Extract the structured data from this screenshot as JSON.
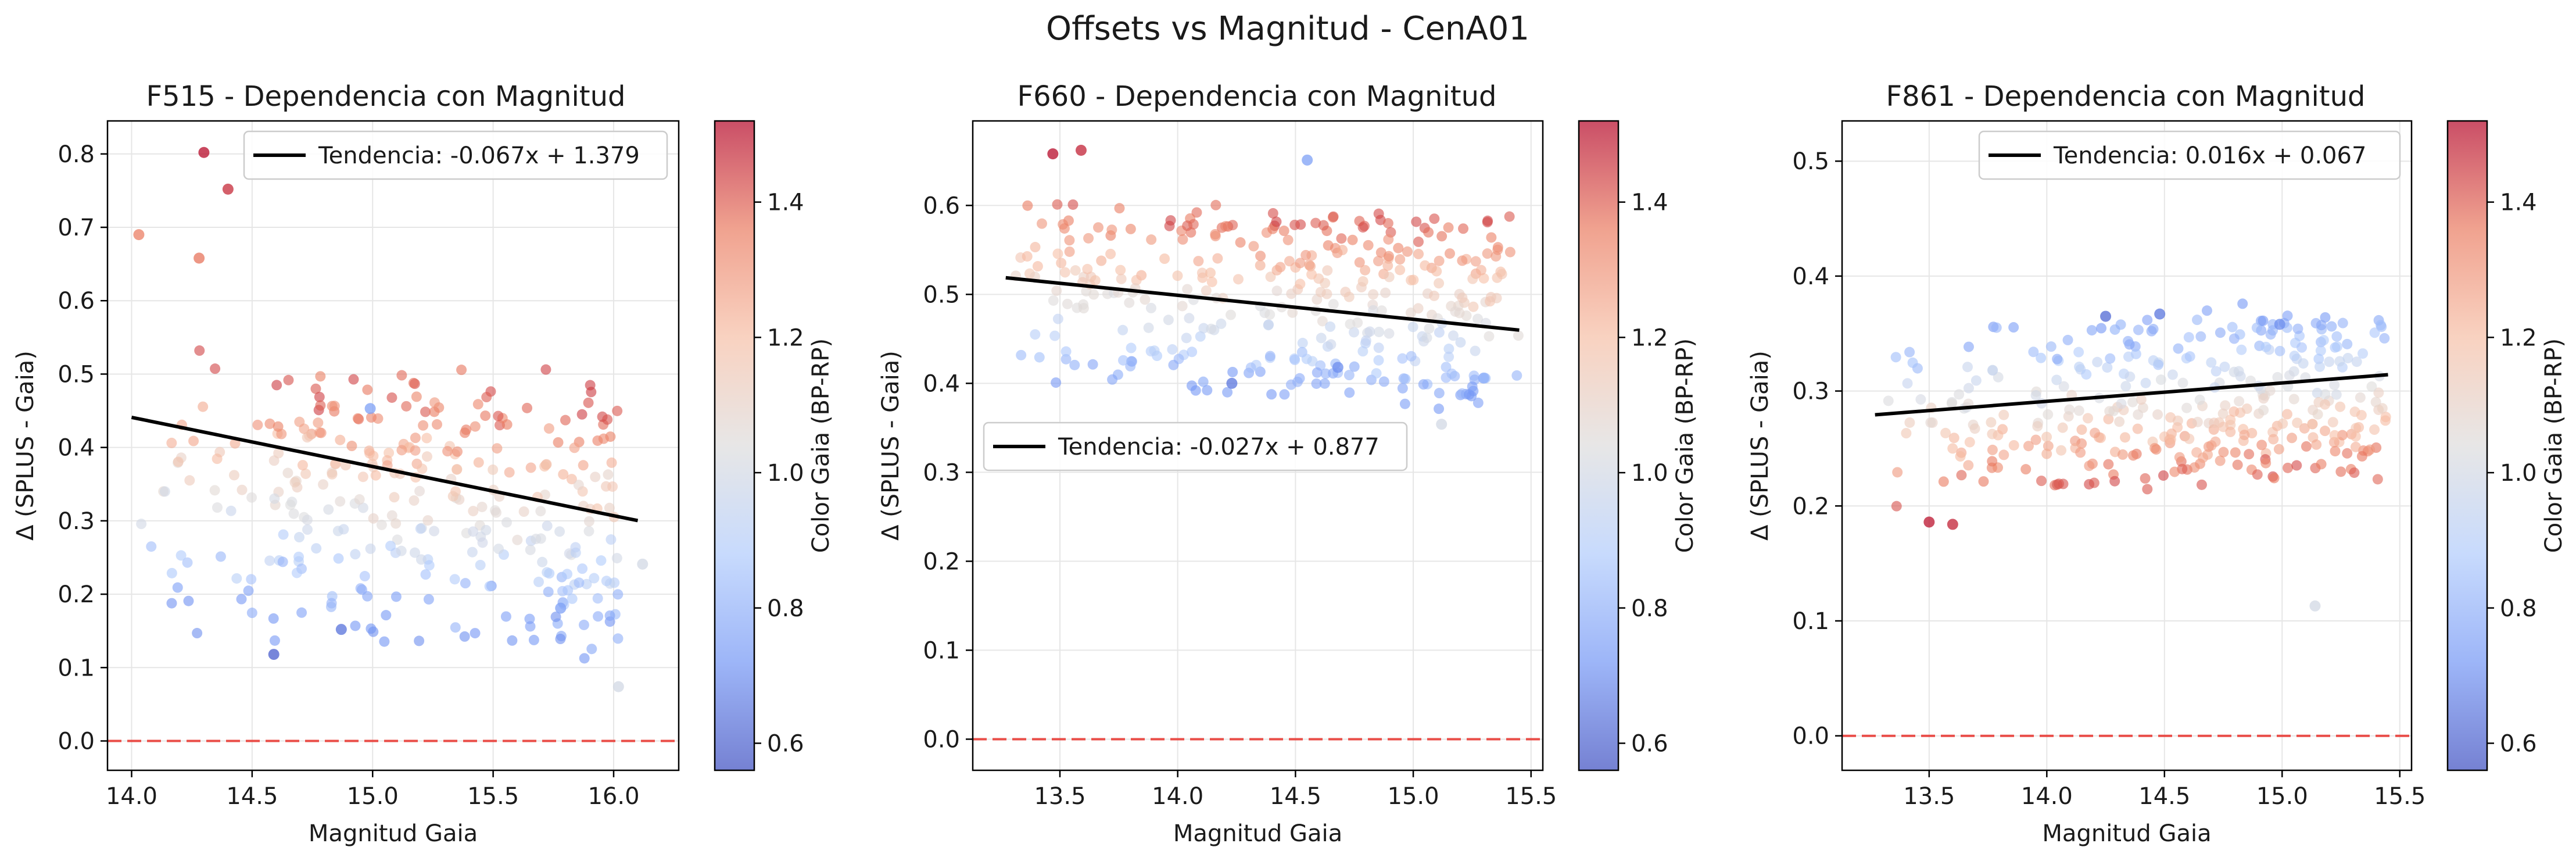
{
  "figure": {
    "suptitle": "Offsets vs Magnitud - CenA01"
  },
  "colorbar": {
    "label": "Color Gaia (BP-RP)",
    "range": [
      0.56,
      1.52
    ],
    "ticks": [
      0.6,
      0.8,
      1.0,
      1.2,
      1.4
    ],
    "colormap": "coolwarm",
    "cmap_stops": [
      "#3b4cc0",
      "#7396f5",
      "#b0cbfc",
      "#dddcdc",
      "#f6bfa6",
      "#ea7b60",
      "#b40426"
    ],
    "point_alpha": 0.6
  },
  "chart_data": [
    {
      "type": "scatter",
      "title": "F515 - Dependencia con Magnitud",
      "xlabel": "Magnitud Gaia",
      "ylabel": "Δ (SPLUS - Gaia)",
      "xlim": [
        13.9,
        16.27
      ],
      "ylim": [
        -0.04,
        0.845
      ],
      "xticks": [
        14.0,
        14.5,
        15.0,
        15.5,
        16.0
      ],
      "yticks": [
        0.0,
        0.1,
        0.2,
        0.3,
        0.4,
        0.5,
        0.6,
        0.7,
        0.8
      ],
      "grid": true,
      "legend": "top-right",
      "reference_line": {
        "y": 0.0,
        "color": "#e8302a",
        "style": "dashed"
      },
      "trend": {
        "label": "Tendencia: -0.067x + 1.379",
        "slope": -0.067,
        "intercept": 1.379,
        "x_range": [
          14.0,
          16.1
        ]
      },
      "sample_points": [
        {
          "x": 14.3,
          "y": 0.802,
          "c": 1.51
        },
        {
          "x": 14.4,
          "y": 0.752,
          "c": 1.47
        },
        {
          "x": 14.03,
          "y": 0.69,
          "c": 1.35
        },
        {
          "x": 14.28,
          "y": 0.658,
          "c": 1.37
        },
        {
          "x": 14.59,
          "y": 0.118,
          "c": 0.6
        },
        {
          "x": 14.87,
          "y": 0.152,
          "c": 0.64
        },
        {
          "x": 16.02,
          "y": 0.074,
          "c": 1.0
        },
        {
          "x": 15.78,
          "y": 0.181,
          "c": 0.75
        },
        {
          "x": 14.99,
          "y": 0.453,
          "c": 0.75
        },
        {
          "x": 16.12,
          "y": 0.241,
          "c": 1.0
        }
      ]
    },
    {
      "type": "scatter",
      "title": "F660 - Dependencia con Magnitud",
      "xlabel": "Magnitud Gaia",
      "ylabel": "Δ (SPLUS - Gaia)",
      "xlim": [
        13.13,
        15.55
      ],
      "ylim": [
        -0.035,
        0.695
      ],
      "xticks": [
        13.5,
        14.0,
        14.5,
        15.0,
        15.5
      ],
      "yticks": [
        0.0,
        0.1,
        0.2,
        0.3,
        0.4,
        0.5,
        0.6
      ],
      "grid": true,
      "legend": "center-left",
      "reference_line": {
        "y": 0.0,
        "color": "#e8302a",
        "style": "dashed"
      },
      "trend": {
        "label": "Tendencia: -0.027x + 0.877",
        "slope": -0.027,
        "intercept": 0.877,
        "x_range": [
          13.27,
          15.45
        ]
      },
      "sample_points": [
        {
          "x": 13.47,
          "y": 0.658,
          "c": 1.51
        },
        {
          "x": 13.59,
          "y": 0.662,
          "c": 1.48
        },
        {
          "x": 14.55,
          "y": 0.651,
          "c": 0.75
        },
        {
          "x": 14.23,
          "y": 0.4,
          "c": 0.65
        },
        {
          "x": 14.68,
          "y": 0.418,
          "c": 0.7
        },
        {
          "x": 15.12,
          "y": 0.354,
          "c": 1.0
        },
        {
          "x": 15.3,
          "y": 0.406,
          "c": 0.8
        }
      ]
    },
    {
      "type": "scatter",
      "title": "F861 - Dependencia con Magnitud",
      "xlabel": "Magnitud Gaia",
      "ylabel": "Δ (SPLUS - Gaia)",
      "xlim": [
        13.13,
        15.55
      ],
      "ylim": [
        -0.03,
        0.535
      ],
      "xticks": [
        13.5,
        14.0,
        14.5,
        15.0,
        15.5
      ],
      "yticks": [
        0.0,
        0.1,
        0.2,
        0.3,
        0.4,
        0.5
      ],
      "grid": true,
      "legend": "top-right",
      "reference_line": {
        "y": 0.0,
        "color": "#e8302a",
        "style": "dashed"
      },
      "trend": {
        "label": "Tendencia: 0.016x + 0.067",
        "slope": 0.016,
        "intercept": 0.067,
        "x_range": [
          13.27,
          15.45
        ]
      },
      "sample_points": [
        {
          "x": 13.5,
          "y": 0.186,
          "c": 1.5
        },
        {
          "x": 13.6,
          "y": 0.184,
          "c": 1.48
        },
        {
          "x": 14.25,
          "y": 0.365,
          "c": 0.62
        },
        {
          "x": 14.48,
          "y": 0.367,
          "c": 0.65
        },
        {
          "x": 15.14,
          "y": 0.113,
          "c": 1.0
        },
        {
          "x": 14.99,
          "y": 0.358,
          "c": 0.7
        }
      ]
    }
  ]
}
